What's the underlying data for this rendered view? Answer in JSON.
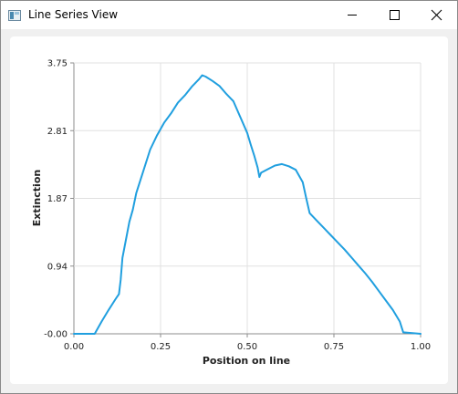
{
  "window": {
    "title": "Line Series View",
    "icon": "app-window-icon",
    "controls": [
      "minimize-icon",
      "maximize-icon",
      "close-icon"
    ]
  },
  "colors": {
    "series": "#209fdf",
    "grid": "#e0e0e0",
    "axis": "#8c8c8c",
    "background": "#f0f0f0"
  },
  "chart_data": {
    "type": "line",
    "title": "",
    "xlabel": "Position on line",
    "ylabel": "Extinction",
    "xlim": [
      0,
      1
    ],
    "ylim": [
      -0.0,
      3.75
    ],
    "xticks": [
      "0.00",
      "0.25",
      "0.50",
      "0.75",
      "1.00"
    ],
    "yticks": [
      "-0.00",
      "0.94",
      "1.87",
      "2.81",
      "3.75"
    ],
    "grid": true,
    "legend": "none",
    "series": [
      {
        "x": [
          0.0,
          0.06,
          0.08,
          0.1,
          0.12,
          0.13,
          0.135,
          0.14,
          0.15,
          0.16,
          0.17,
          0.18,
          0.2,
          0.22,
          0.24,
          0.26,
          0.28,
          0.3,
          0.32,
          0.34,
          0.36,
          0.37,
          0.38,
          0.4,
          0.42,
          0.44,
          0.46,
          0.48,
          0.5,
          0.51,
          0.52,
          0.53,
          0.535,
          0.54,
          0.56,
          0.58,
          0.6,
          0.62,
          0.64,
          0.66,
          0.67,
          0.68,
          0.7,
          0.72,
          0.74,
          0.76,
          0.78,
          0.8,
          0.82,
          0.84,
          0.86,
          0.88,
          0.9,
          0.92,
          0.94,
          0.95,
          1.0
        ],
        "y": [
          0.0,
          0.0,
          0.17,
          0.33,
          0.48,
          0.55,
          0.75,
          1.05,
          1.3,
          1.55,
          1.72,
          1.95,
          2.25,
          2.55,
          2.75,
          2.92,
          3.05,
          3.2,
          3.3,
          3.42,
          3.52,
          3.58,
          3.56,
          3.5,
          3.43,
          3.32,
          3.22,
          3.0,
          2.78,
          2.62,
          2.47,
          2.3,
          2.17,
          2.23,
          2.28,
          2.33,
          2.35,
          2.32,
          2.27,
          2.1,
          1.88,
          1.67,
          1.57,
          1.47,
          1.37,
          1.27,
          1.17,
          1.06,
          0.95,
          0.84,
          0.72,
          0.59,
          0.46,
          0.33,
          0.17,
          0.02,
          0.0
        ]
      }
    ]
  }
}
